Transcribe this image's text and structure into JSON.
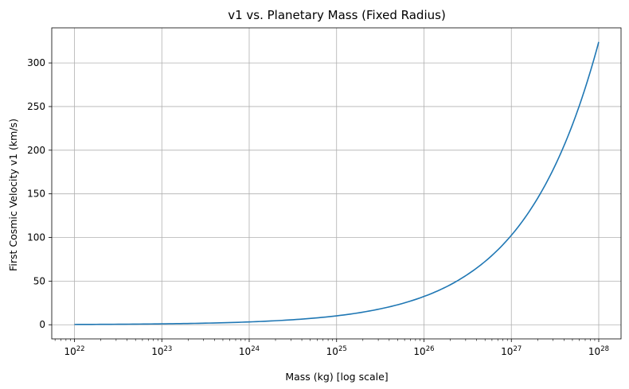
{
  "chart_data": {
    "type": "line",
    "title": "v1 vs. Planetary Mass (Fixed Radius)",
    "xlabel": "Mass (kg) [log scale]",
    "ylabel": "First Cosmic Velocity v1 (km/s)",
    "xscale": "log",
    "xlim": [
      5.5e+21,
      1.8e+28
    ],
    "ylim": [
      -16.2,
      340.2
    ],
    "grid": true,
    "x_ticks": [
      {
        "value": 1e+22,
        "base": "10",
        "exp": "22"
      },
      {
        "value": 1e+23,
        "base": "10",
        "exp": "23"
      },
      {
        "value": 1e+24,
        "base": "10",
        "exp": "24"
      },
      {
        "value": 1e+25,
        "base": "10",
        "exp": "25"
      },
      {
        "value": 1e+26,
        "base": "10",
        "exp": "26"
      },
      {
        "value": 1e+27,
        "base": "10",
        "exp": "27"
      },
      {
        "value": 1e+28,
        "base": "10",
        "exp": "28"
      }
    ],
    "y_ticks": [
      {
        "value": 0,
        "label": "0"
      },
      {
        "value": 50,
        "label": "50"
      },
      {
        "value": 100,
        "label": "100"
      },
      {
        "value": 150,
        "label": "150"
      },
      {
        "value": 200,
        "label": "200"
      },
      {
        "value": 250,
        "label": "250"
      },
      {
        "value": 300,
        "label": "300"
      }
    ],
    "series": [
      {
        "color": "#1f77b4",
        "x": [
          1e+22,
          3.162e+22,
          1e+23,
          3.162e+23,
          1e+24,
          3.162e+24,
          1e+25,
          3.162e+25,
          1e+26,
          2e+26,
          3.162e+26,
          5e+26,
          1e+27,
          2e+27,
          3.162e+27,
          5e+27,
          7e+27,
          1e+28
        ],
        "y": [
          0.32,
          0.58,
          1.03,
          1.82,
          3.24,
          5.77,
          10.2,
          18.2,
          32.4,
          45.8,
          57.7,
          72.5,
          102.5,
          145.0,
          182.3,
          229.2,
          271.2,
          324.0
        ]
      }
    ]
  }
}
